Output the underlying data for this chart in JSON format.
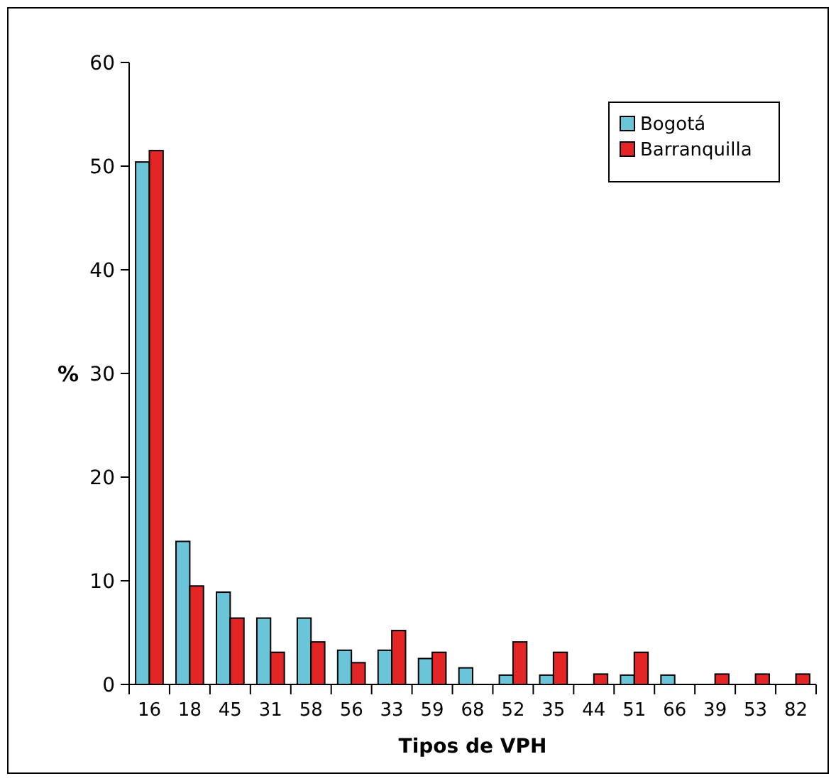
{
  "chart_data": {
    "type": "bar",
    "xlabel": "Tipos de VPH",
    "ylabel": "%",
    "categories": [
      "16",
      "18",
      "45",
      "31",
      "58",
      "56",
      "33",
      "59",
      "68",
      "52",
      "35",
      "44",
      "51",
      "66",
      "39",
      "53",
      "82"
    ],
    "series": [
      {
        "name": "Bogotá",
        "color": "#6ac5d8",
        "values": [
          50.4,
          13.8,
          8.9,
          6.4,
          6.4,
          3.3,
          3.3,
          2.5,
          1.6,
          0.9,
          0.9,
          0,
          0.9,
          0.9,
          0,
          0,
          0
        ]
      },
      {
        "name": "Barranquilla",
        "color": "#e42525",
        "values": [
          51.5,
          9.5,
          6.4,
          3.1,
          4.1,
          2.1,
          5.2,
          3.1,
          0,
          4.1,
          3.1,
          1.0,
          3.1,
          0,
          1.0,
          1.0,
          1.0
        ]
      }
    ],
    "ylim": [
      0,
      60
    ],
    "yticks": [
      0,
      10,
      20,
      30,
      40,
      50,
      60
    ],
    "grid": false,
    "legend": "top right"
  }
}
